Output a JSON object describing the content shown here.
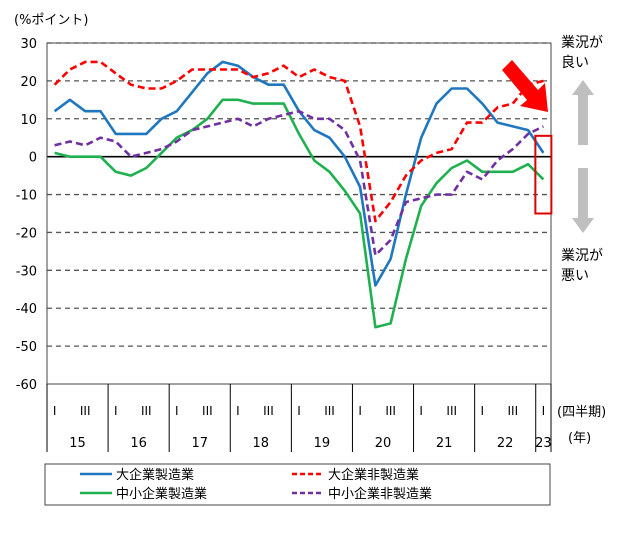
{
  "chart_data": {
    "type": "line",
    "ylabel": "(%ポイント)",
    "ylim": [
      -60,
      30
    ],
    "yticks": [
      30,
      20,
      10,
      0,
      -10,
      -20,
      -30,
      -40,
      -50,
      -60
    ],
    "grid": true,
    "quarter_labels": [
      "I",
      "III"
    ],
    "last_quarter_label": "I",
    "years": [
      "15",
      "16",
      "17",
      "18",
      "19",
      "20",
      "21",
      "22",
      "23"
    ],
    "x_unit_quarter": "(四半期)",
    "x_unit_year": "(年)",
    "annotation_good": [
      "業況が",
      "良い"
    ],
    "annotation_bad": [
      "業況が",
      "悪い"
    ],
    "legend_position": "bottom",
    "series": [
      {
        "name": "大企業製造業",
        "color": "#1f77c0",
        "dash": false,
        "values": [
          12,
          15,
          12,
          12,
          6,
          6,
          6,
          10,
          12,
          17,
          22,
          25,
          24,
          21,
          19,
          19,
          12,
          7,
          5,
          0,
          -8,
          -34,
          -27,
          -10,
          5,
          14,
          18,
          18,
          14,
          9,
          8,
          7,
          1
        ]
      },
      {
        "name": "大企業非製造業",
        "color": "#ff0000",
        "dash": true,
        "values": [
          19,
          23,
          25,
          25,
          22,
          19,
          18,
          18,
          20,
          23,
          23,
          23,
          23,
          21,
          22,
          24,
          21,
          23,
          21,
          20,
          8,
          -17,
          -12,
          -5,
          -1,
          1,
          2,
          9,
          9,
          13,
          14,
          19,
          20
        ]
      },
      {
        "name": "中小企業製造業",
        "color": "#1fb04f",
        "dash": false,
        "values": [
          1,
          0,
          0,
          0,
          -4,
          -5,
          -3,
          1,
          5,
          7,
          10,
          15,
          15,
          14,
          14,
          14,
          6,
          -1,
          -4,
          -9,
          -15,
          -45,
          -44,
          -27,
          -13,
          -7,
          -3,
          -1,
          -4,
          -4,
          -4,
          -2,
          -6
        ]
      },
      {
        "name": "中小企業非製造業",
        "color": "#7030a0",
        "dash": true,
        "values": [
          3,
          4,
          3,
          5,
          4,
          0,
          1,
          2,
          4,
          7,
          8,
          9,
          10,
          8,
          10,
          11,
          12,
          10,
          10,
          7,
          -1,
          -26,
          -22,
          -12,
          -11,
          -10,
          -10,
          -4,
          -6,
          -1,
          2,
          6,
          8
        ]
      }
    ]
  }
}
